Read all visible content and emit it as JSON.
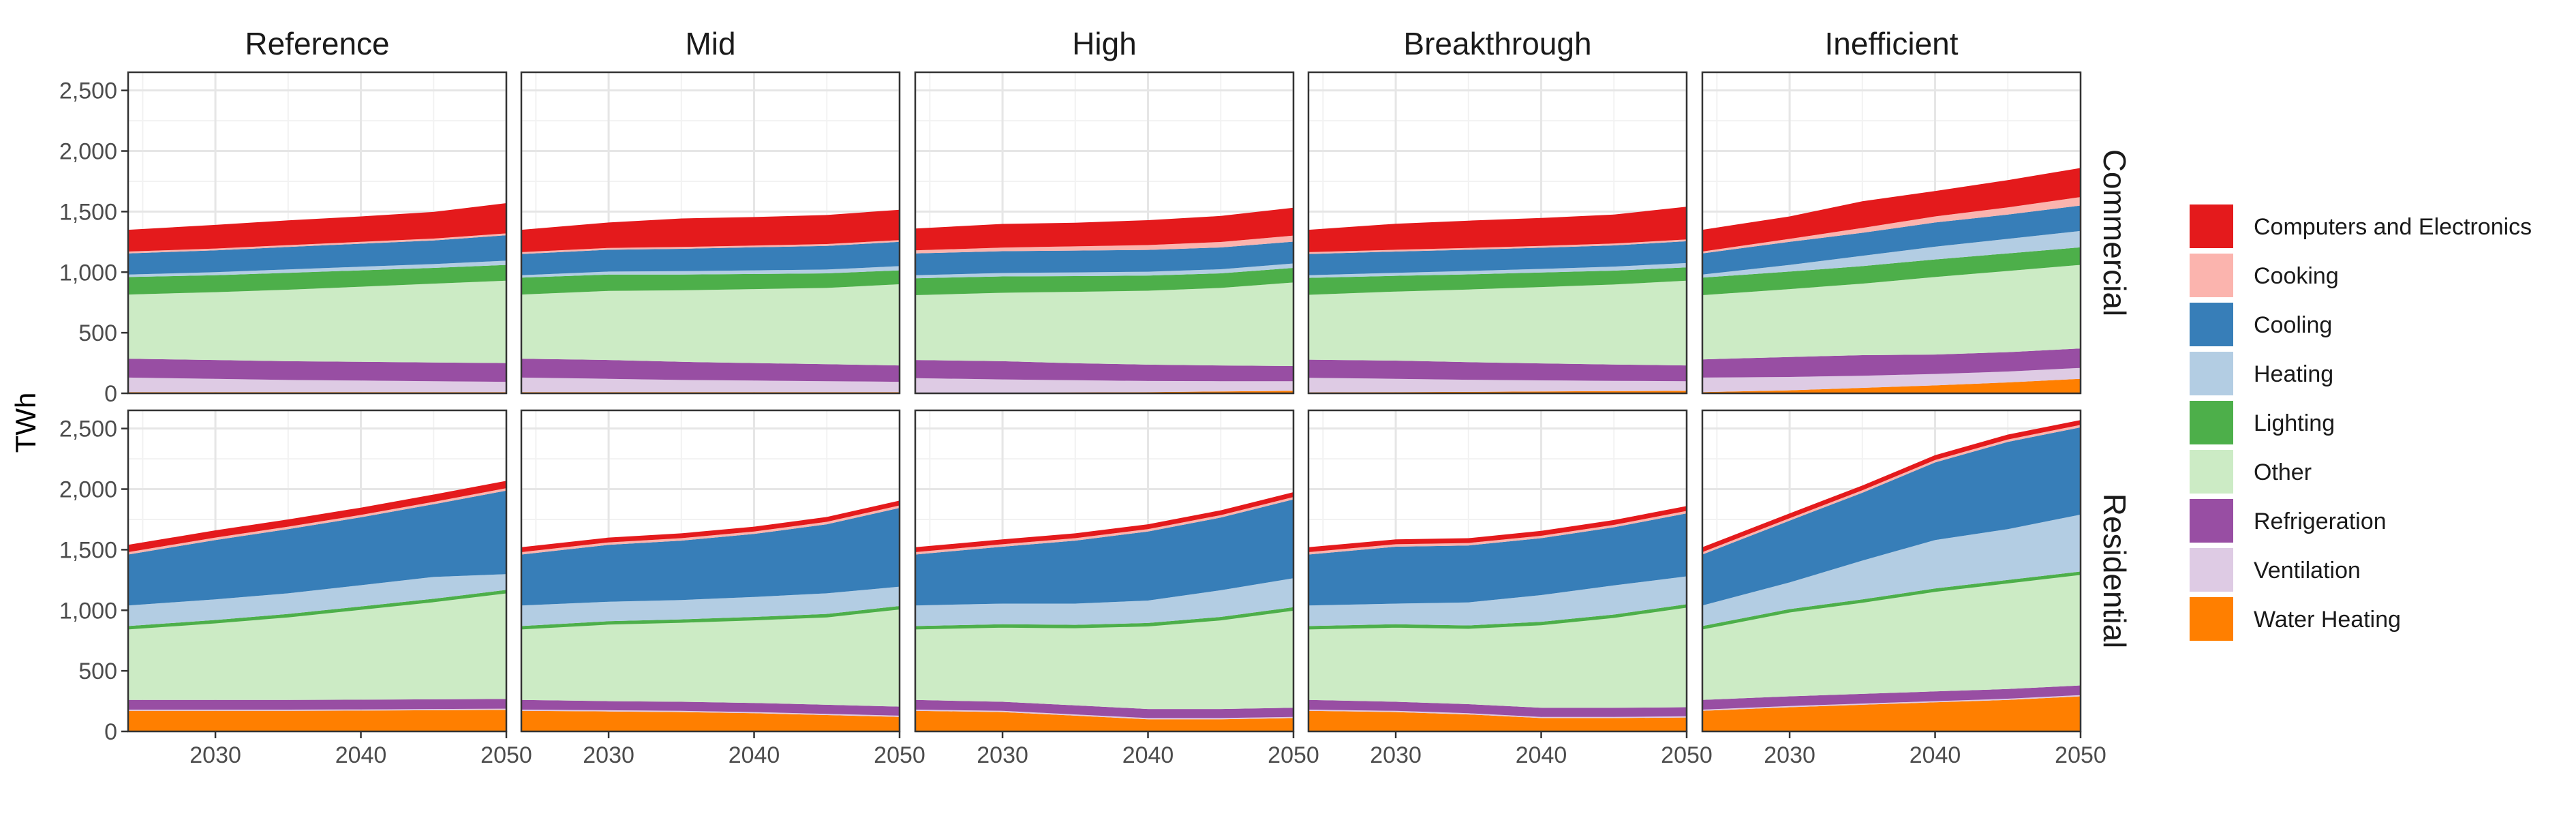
{
  "chart_data": {
    "type": "area",
    "stacked": true,
    "facet_columns": [
      "Reference",
      "Mid",
      "High",
      "Breakthrough",
      "Inefficient"
    ],
    "facet_rows": [
      "Commercial",
      "Residential"
    ],
    "ylabel": "TWh",
    "xlabel": "",
    "xlim": [
      2024,
      2050
    ],
    "ylim": [
      0,
      2650
    ],
    "x_ticks": [
      2030,
      2040,
      2050
    ],
    "x_tick_labels": [
      "2030",
      "2040",
      "2050"
    ],
    "y_ticks": [
      0,
      500,
      1000,
      1500,
      2000,
      2500
    ],
    "y_tick_labels": [
      "0",
      "500",
      "1,000",
      "1,500",
      "2,000",
      "2,500"
    ],
    "grid": true,
    "legend_position": "right",
    "stack_order": [
      "Water Heating",
      "Ventilation",
      "Refrigeration",
      "Other",
      "Lighting",
      "Heating",
      "Cooling",
      "Cooking",
      "Computers and Electronics"
    ],
    "legend": [
      {
        "name": "Computers and Electronics",
        "color": "#e41a1c"
      },
      {
        "name": "Cooking",
        "color": "#fbb4ae"
      },
      {
        "name": "Cooling",
        "color": "#377eb8"
      },
      {
        "name": "Heating",
        "color": "#b3cde3"
      },
      {
        "name": "Lighting",
        "color": "#4daf4a"
      },
      {
        "name": "Other",
        "color": "#ccebc5"
      },
      {
        "name": "Refrigeration",
        "color": "#984ea3"
      },
      {
        "name": "Ventilation",
        "color": "#decbe4"
      },
      {
        "name": "Water Heating",
        "color": "#ff7f00"
      }
    ],
    "x": [
      2024,
      2030,
      2035,
      2040,
      2045,
      2050
    ],
    "panels": {
      "Commercial": {
        "Reference": {
          "Water Heating": [
            10,
            10,
            10,
            10,
            10,
            10
          ],
          "Ventilation": [
            120,
            110,
            100,
            95,
            90,
            85
          ],
          "Refrigeration": [
            155,
            155,
            155,
            155,
            155,
            155
          ],
          "Other": [
            530,
            560,
            590,
            620,
            650,
            680
          ],
          "Lighting": [
            145,
            140,
            140,
            135,
            130,
            130
          ],
          "Heating": [
            20,
            25,
            28,
            30,
            32,
            35
          ],
          "Cooling": [
            175,
            180,
            185,
            190,
            195,
            210
          ],
          "Cooking": [
            15,
            15,
            15,
            15,
            15,
            15
          ],
          "Computers and Electronics": [
            180,
            195,
            205,
            210,
            220,
            250
          ]
        },
        "Mid": {
          "Water Heating": [
            10,
            10,
            10,
            10,
            10,
            10
          ],
          "Ventilation": [
            120,
            110,
            100,
            95,
            90,
            85
          ],
          "Refrigeration": [
            155,
            155,
            150,
            145,
            140,
            135
          ],
          "Other": [
            530,
            570,
            590,
            610,
            630,
            670
          ],
          "Lighting": [
            140,
            135,
            130,
            125,
            120,
            115
          ],
          "Heating": [
            20,
            25,
            28,
            30,
            32,
            35
          ],
          "Cooling": [
            175,
            180,
            185,
            190,
            195,
            200
          ],
          "Cooking": [
            15,
            15,
            15,
            15,
            15,
            15
          ],
          "Computers and Electronics": [
            185,
            210,
            235,
            235,
            240,
            250
          ]
        },
        "High": {
          "Water Heating": [
            5,
            5,
            8,
            10,
            15,
            20
          ],
          "Ventilation": [
            120,
            110,
            100,
            92,
            85,
            80
          ],
          "Refrigeration": [
            150,
            150,
            140,
            135,
            130,
            125
          ],
          "Other": [
            535,
            565,
            590,
            610,
            640,
            690
          ],
          "Lighting": [
            140,
            135,
            130,
            125,
            120,
            120
          ],
          "Heating": [
            25,
            28,
            30,
            32,
            34,
            37
          ],
          "Cooling": [
            180,
            180,
            180,
            180,
            180,
            180
          ],
          "Cooking": [
            25,
            30,
            35,
            40,
            45,
            50
          ],
          "Computers and Electronics": [
            180,
            195,
            195,
            205,
            215,
            230
          ]
        },
        "Breakthrough": {
          "Water Heating": [
            8,
            10,
            12,
            15,
            18,
            20
          ],
          "Ventilation": [
            120,
            110,
            100,
            92,
            85,
            80
          ],
          "Refrigeration": [
            150,
            150,
            145,
            140,
            135,
            130
          ],
          "Other": [
            535,
            570,
            600,
            630,
            660,
            700
          ],
          "Lighting": [
            140,
            130,
            125,
            120,
            115,
            110
          ],
          "Heating": [
            22,
            25,
            28,
            30,
            33,
            35
          ],
          "Cooling": [
            175,
            175,
            175,
            175,
            175,
            180
          ],
          "Cooking": [
            15,
            15,
            15,
            15,
            15,
            15
          ],
          "Computers and Electronics": [
            185,
            215,
            225,
            230,
            240,
            270
          ]
        },
        "Inefficient": {
          "Water Heating": [
            10,
            25,
            45,
            65,
            90,
            120
          ],
          "Ventilation": [
            120,
            110,
            100,
            95,
            90,
            90
          ],
          "Refrigeration": [
            150,
            165,
            170,
            160,
            160,
            160
          ],
          "Other": [
            530,
            560,
            590,
            640,
            670,
            690
          ],
          "Lighting": [
            145,
            145,
            145,
            145,
            145,
            145
          ],
          "Heating": [
            25,
            55,
            85,
            105,
            120,
            135
          ],
          "Cooling": [
            175,
            190,
            190,
            200,
            200,
            210
          ],
          "Cooking": [
            15,
            25,
            40,
            50,
            60,
            70
          ],
          "Computers and Electronics": [
            180,
            185,
            220,
            210,
            225,
            240
          ]
        }
      },
      "Residential": {
        "Reference": {
          "Water Heating": [
            170,
            170,
            170,
            172,
            175,
            178
          ],
          "Ventilation": [
            10,
            10,
            10,
            10,
            10,
            10
          ],
          "Refrigeration": [
            80,
            80,
            80,
            80,
            80,
            80
          ],
          "Other": [
            590,
            640,
            690,
            750,
            810,
            880
          ],
          "Lighting": [
            20,
            20,
            20,
            20,
            20,
            20
          ],
          "Heating": [
            170,
            170,
            170,
            175,
            180,
            130
          ],
          "Cooling": [
            420,
            490,
            530,
            560,
            600,
            690
          ],
          "Cooking": [
            20,
            20,
            20,
            20,
            20,
            20
          ],
          "Computers and Electronics": [
            60,
            60,
            60,
            60,
            60,
            60
          ]
        },
        "Mid": {
          "Water Heating": [
            170,
            165,
            160,
            150,
            135,
            120
          ],
          "Ventilation": [
            10,
            10,
            10,
            10,
            10,
            10
          ],
          "Refrigeration": [
            80,
            75,
            75,
            75,
            75,
            75
          ],
          "Other": [
            590,
            640,
            660,
            690,
            730,
            810
          ],
          "Lighting": [
            20,
            20,
            20,
            20,
            20,
            20
          ],
          "Heating": [
            170,
            160,
            160,
            165,
            170,
            160
          ],
          "Cooling": [
            420,
            470,
            490,
            520,
            570,
            650
          ],
          "Cooking": [
            20,
            20,
            20,
            20,
            20,
            20
          ],
          "Computers and Electronics": [
            40,
            40,
            40,
            40,
            40,
            40
          ]
        },
        "High": {
          "Water Heating": [
            170,
            160,
            130,
            100,
            100,
            110
          ],
          "Ventilation": [
            10,
            10,
            10,
            10,
            10,
            10
          ],
          "Refrigeration": [
            80,
            75,
            75,
            75,
            75,
            75
          ],
          "Other": [
            590,
            620,
            645,
            690,
            740,
            810
          ],
          "Lighting": [
            20,
            20,
            20,
            20,
            20,
            20
          ],
          "Heating": [
            170,
            170,
            175,
            185,
            220,
            240
          ],
          "Cooling": [
            420,
            470,
            520,
            570,
            600,
            650
          ],
          "Cooking": [
            20,
            20,
            20,
            20,
            20,
            20
          ],
          "Computers and Electronics": [
            40,
            40,
            40,
            40,
            40,
            40
          ]
        },
        "Breakthrough": {
          "Water Heating": [
            170,
            160,
            140,
            110,
            110,
            115
          ],
          "Ventilation": [
            10,
            10,
            10,
            10,
            10,
            10
          ],
          "Refrigeration": [
            80,
            75,
            75,
            75,
            75,
            75
          ],
          "Other": [
            590,
            620,
            630,
            690,
            750,
            830
          ],
          "Lighting": [
            20,
            20,
            20,
            20,
            20,
            20
          ],
          "Heating": [
            170,
            170,
            190,
            220,
            240,
            230
          ],
          "Cooling": [
            420,
            470,
            470,
            470,
            480,
            520
          ],
          "Cooking": [
            20,
            20,
            20,
            20,
            20,
            20
          ],
          "Computers and Electronics": [
            40,
            40,
            40,
            40,
            40,
            40
          ]
        },
        "Inefficient": {
          "Water Heating": [
            170,
            200,
            220,
            240,
            260,
            290
          ],
          "Ventilation": [
            10,
            10,
            10,
            10,
            10,
            10
          ],
          "Refrigeration": [
            80,
            80,
            80,
            80,
            80,
            80
          ],
          "Other": [
            590,
            700,
            760,
            830,
            880,
            920
          ],
          "Lighting": [
            20,
            20,
            20,
            20,
            20,
            20
          ],
          "Heating": [
            170,
            220,
            320,
            400,
            420,
            470
          ],
          "Cooling": [
            420,
            510,
            560,
            640,
            720,
            720
          ],
          "Cooking": [
            20,
            20,
            20,
            20,
            20,
            20
          ],
          "Computers and Electronics": [
            40,
            40,
            40,
            40,
            40,
            40
          ]
        }
      }
    }
  }
}
